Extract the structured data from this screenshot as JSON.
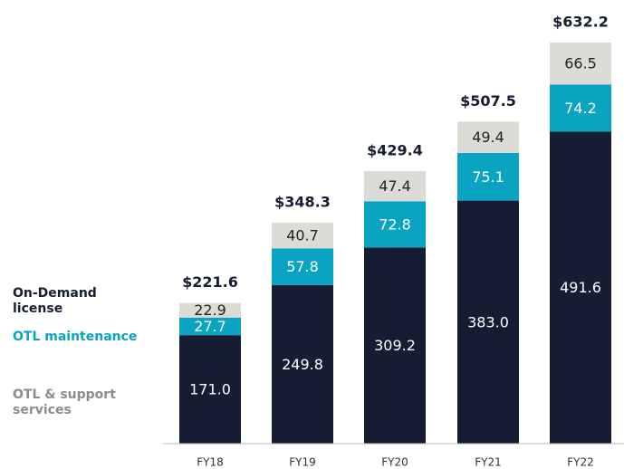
{
  "chart_data": {
    "type": "stacked_bar",
    "categories": [
      "FY18",
      "FY19",
      "FY20",
      "FY21",
      "FY22"
    ],
    "series": [
      {
        "name": "On-Demand license",
        "color": "#161d33",
        "label_color": "#ffffff",
        "values": [
          171.0,
          249.8,
          309.2,
          383.0,
          491.6
        ],
        "value_labels": [
          "171.0",
          "249.8",
          "309.2",
          "383.0",
          "491.6"
        ]
      },
      {
        "name": "OTL maintenance",
        "color": "#0aa3c2",
        "label_color": "#ffffff",
        "values": [
          27.7,
          57.8,
          72.8,
          75.1,
          74.2
        ],
        "value_labels": [
          "27.7",
          "57.8",
          "72.8",
          "75.1",
          "74.2"
        ]
      },
      {
        "name": "OTL & support services",
        "color": "#dcdcd7",
        "legend_color": "#8c8c8c",
        "label_color": "#222222",
        "values": [
          22.9,
          40.7,
          47.4,
          49.4,
          66.5
        ],
        "value_labels": [
          "22.9",
          "40.7",
          "47.4",
          "49.4",
          "66.5"
        ]
      }
    ],
    "totals": [
      221.6,
      348.3,
      429.4,
      507.5,
      632.2
    ],
    "total_labels": [
      "$221.6",
      "$348.3",
      "$429.4",
      "$507.5",
      "$632.2"
    ],
    "ylim": [
      0,
      640
    ]
  }
}
